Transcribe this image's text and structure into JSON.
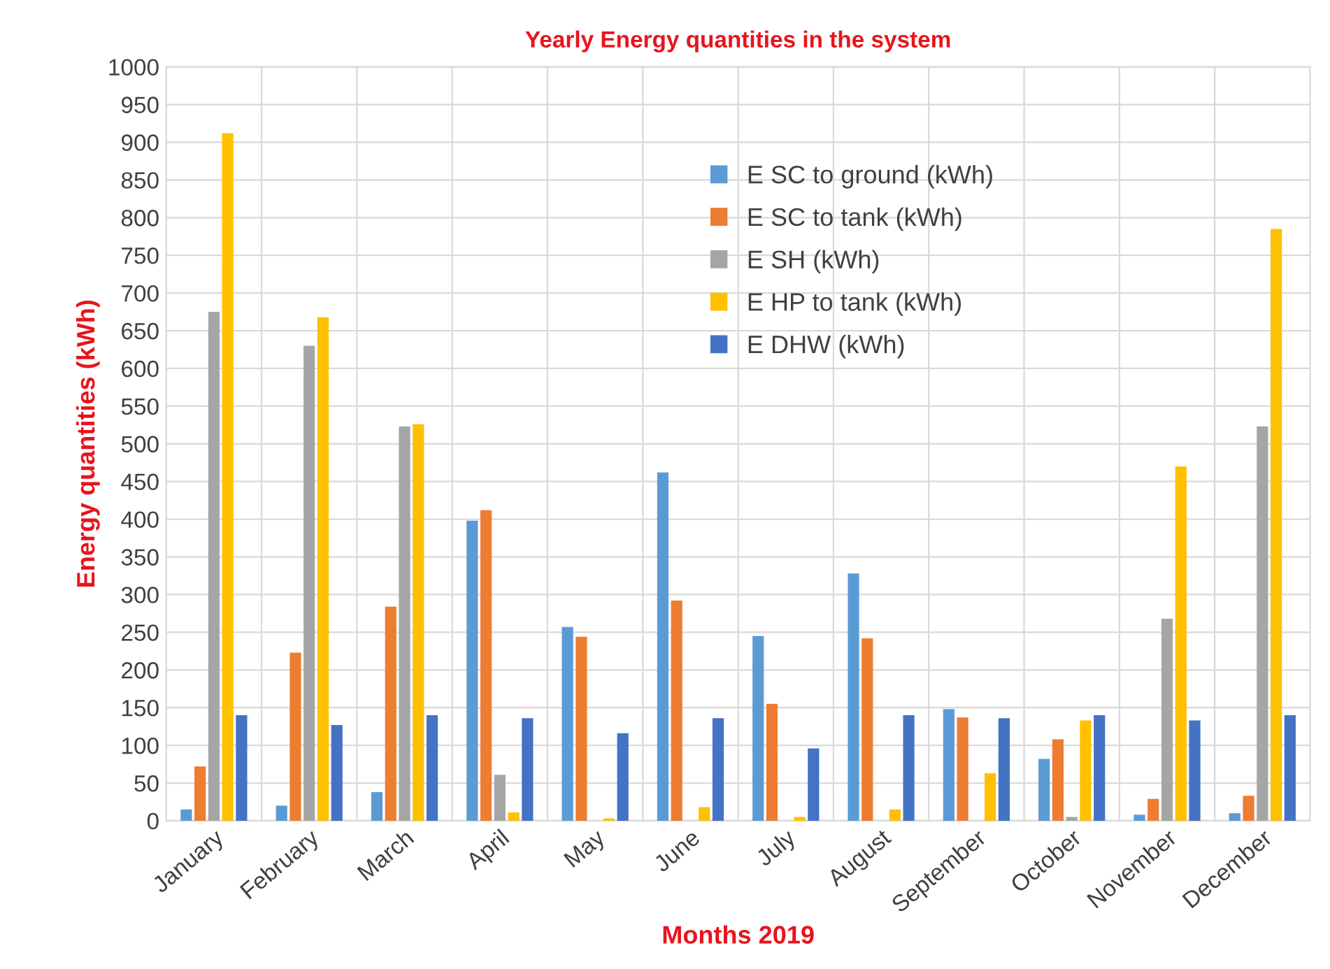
{
  "chart_data": {
    "type": "bar",
    "title": "Yearly Energy quantities in the system",
    "xlabel": "Months 2019",
    "ylabel": "Energy quantities (kWh)",
    "categories": [
      "January",
      "February",
      "March",
      "April",
      "May",
      "June",
      "July",
      "August",
      "September",
      "October",
      "November",
      "December"
    ],
    "series": [
      {
        "name": "E SC to ground (kWh)",
        "color": "#5b9bd5",
        "values": [
          15,
          20,
          38,
          398,
          257,
          462,
          245,
          328,
          148,
          82,
          8,
          10
        ]
      },
      {
        "name": "E SC to tank (kWh)",
        "color": "#ed7d31",
        "values": [
          72,
          223,
          284,
          412,
          244,
          292,
          155,
          242,
          137,
          108,
          29,
          33
        ]
      },
      {
        "name": "E SH (kWh)",
        "color": "#a5a5a5",
        "values": [
          675,
          630,
          523,
          61,
          0,
          0,
          0,
          0,
          0,
          5,
          268,
          523
        ]
      },
      {
        "name": "E HP to tank (kWh)",
        "color": "#ffc000",
        "values": [
          912,
          668,
          526,
          11,
          3,
          18,
          5,
          15,
          63,
          133,
          470,
          785
        ]
      },
      {
        "name": "E DHW (kWh)",
        "color": "#4472c4",
        "values": [
          140,
          127,
          140,
          136,
          116,
          136,
          96,
          140,
          136,
          140,
          133,
          140
        ]
      }
    ],
    "ylim": [
      0,
      1000
    ],
    "yticks": [
      0,
      50,
      100,
      150,
      200,
      250,
      300,
      350,
      400,
      450,
      500,
      550,
      600,
      650,
      700,
      750,
      800,
      850,
      900,
      950,
      1000
    ],
    "grid": true,
    "legend": "top"
  }
}
